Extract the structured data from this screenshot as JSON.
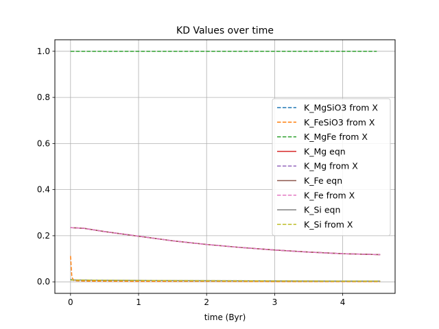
{
  "chart_data": {
    "type": "line",
    "title": "KD Values over time",
    "xlabel": "time (Byr)",
    "ylabel": "",
    "xlim": [
      -0.23,
      4.77
    ],
    "ylim": [
      -0.05,
      1.05
    ],
    "xticks": [
      0,
      1,
      2,
      3,
      4
    ],
    "yticks": [
      0.0,
      0.2,
      0.4,
      0.6,
      0.8,
      1.0
    ],
    "xtick_labels": [
      "0",
      "1",
      "2",
      "3",
      "4"
    ],
    "ytick_labels": [
      "0.0",
      "0.2",
      "0.4",
      "0.6",
      "0.8",
      "1.0"
    ],
    "grid": true,
    "legend_position": "center-right",
    "series": [
      {
        "name": "K_MgSiO3 from X",
        "color": "#1f77b4",
        "dash": "dashed",
        "x": [
          0,
          0.02,
          0.1,
          0.5,
          1,
          2,
          3,
          4,
          4.55
        ],
        "y": [
          0.012,
          0.008,
          0.007,
          0.006,
          0.005,
          0.004,
          0.003,
          0.002,
          0.002
        ]
      },
      {
        "name": "K_FeSiO3 from X",
        "color": "#ff7f0e",
        "dash": "dashed",
        "x": [
          0,
          0.02,
          0.05,
          0.2,
          1,
          2,
          3,
          4,
          4.55
        ],
        "y": [
          0.112,
          0.02,
          0.005,
          0.003,
          0.002,
          0.002,
          0.001,
          0.001,
          0.001
        ]
      },
      {
        "name": "K_MgFe from X",
        "color": "#2ca02c",
        "dash": "dashed",
        "x": [
          0,
          1,
          2,
          3,
          4,
          4.5
        ],
        "y": [
          1.0,
          1.0,
          1.0,
          1.0,
          1.0,
          1.0
        ]
      },
      {
        "name": "K_Mg eqn",
        "color": "#d62728",
        "dash": "solid",
        "x": [
          0,
          0.2,
          0.5,
          1,
          1.5,
          2,
          2.5,
          3,
          3.5,
          4,
          4.55
        ],
        "y": [
          0.235,
          0.232,
          0.218,
          0.198,
          0.178,
          0.162,
          0.149,
          0.138,
          0.129,
          0.122,
          0.118
        ]
      },
      {
        "name": "K_Mg from X",
        "color": "#9467bd",
        "dash": "dashed",
        "x": [
          0,
          0.2,
          0.5,
          1,
          1.5,
          2,
          2.5,
          3,
          3.5,
          4,
          4.55
        ],
        "y": [
          0.235,
          0.232,
          0.218,
          0.198,
          0.178,
          0.162,
          0.149,
          0.138,
          0.129,
          0.122,
          0.118
        ]
      },
      {
        "name": "K_Fe eqn",
        "color": "#8c564b",
        "dash": "solid",
        "x": [
          0,
          0.2,
          0.5,
          1,
          1.5,
          2,
          2.5,
          3,
          3.5,
          4,
          4.55
        ],
        "y": [
          0.235,
          0.232,
          0.218,
          0.198,
          0.178,
          0.162,
          0.149,
          0.138,
          0.129,
          0.122,
          0.118
        ]
      },
      {
        "name": "K_Fe from X",
        "color": "#e377c2",
        "dash": "dashed",
        "x": [
          0,
          0.2,
          0.5,
          1,
          1.5,
          2,
          2.5,
          3,
          3.5,
          4,
          4.55
        ],
        "y": [
          0.235,
          0.232,
          0.218,
          0.198,
          0.178,
          0.162,
          0.149,
          0.138,
          0.129,
          0.122,
          0.118
        ]
      },
      {
        "name": "K_Si eqn",
        "color": "#7f7f7f",
        "dash": "solid",
        "x": [
          0,
          0.5,
          1,
          2,
          3,
          4,
          4.55
        ],
        "y": [
          0.008,
          0.007,
          0.006,
          0.005,
          0.004,
          0.003,
          0.003
        ]
      },
      {
        "name": "K_Si from X",
        "color": "#bcbd22",
        "dash": "dashed",
        "x": [
          0,
          0.5,
          1,
          2,
          3,
          4,
          4.55
        ],
        "y": [
          0.008,
          0.007,
          0.006,
          0.005,
          0.004,
          0.003,
          0.003
        ]
      }
    ]
  }
}
